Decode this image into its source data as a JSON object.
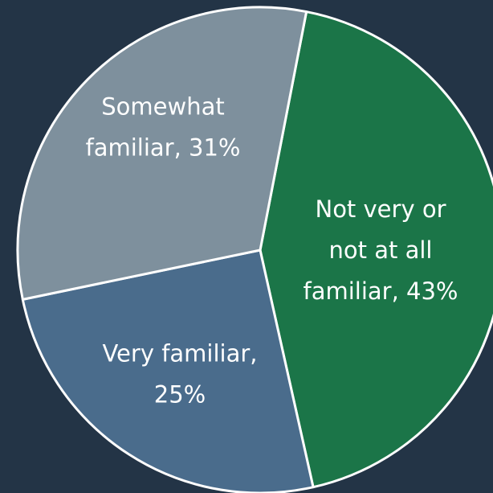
{
  "colors": {
    "background": "#233446",
    "slice_border": "#ffffff"
  },
  "chart_data": {
    "type": "pie",
    "title": "",
    "slices": [
      {
        "key": "not-familiar",
        "category": "Not very or not at all familiar",
        "value": 43,
        "color": "#1b7548",
        "label_lines": [
          "Not very or",
          "not at all",
          "familiar, 43%"
        ]
      },
      {
        "key": "very-familiar",
        "category": "Very familiar",
        "value": 25,
        "color": "#4a6c8c",
        "label_lines": [
          "Very familiar,",
          "25%"
        ]
      },
      {
        "key": "somewhat-familiar",
        "category": "Somewhat familiar",
        "value": 31,
        "color": "#7e909d",
        "label_lines": [
          "Somewhat",
          "familiar, 31%"
        ]
      }
    ]
  }
}
